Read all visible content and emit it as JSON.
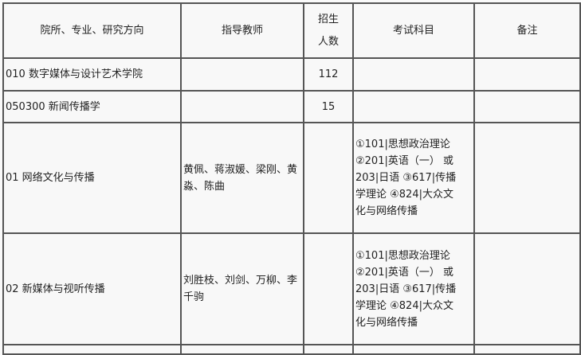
{
  "headers": [
    "院所、专业、研究方向",
    "指导教师",
    "招生人数",
    "考试科目",
    "备注"
  ],
  "header_enroll_lines": [
    "招生",
    "人数"
  ],
  "rows": [
    {
      "name": "010 数字媒体与设计艺术学院",
      "teachers": "",
      "count": "112",
      "exam": [],
      "note": ""
    },
    {
      "name": "050300 新闻传播学",
      "teachers": "",
      "count": "15",
      "exam": [],
      "note": ""
    },
    {
      "name": "01 网络文化与传播",
      "teachers": "黄佩、蒋淑媛、梁刚、黄淼、陈曲",
      "count": "",
      "exam": [
        "①101|思想政治理论",
        "②201|英语（一） 或",
        "203|日语 ③617|传播",
        "学理论 ④824|大众文",
        "化与网络传播"
      ],
      "note": ""
    },
    {
      "name": "02 新媒体与视听传播",
      "teachers": "刘胜枝、刘剑、万柳、李千驹",
      "count": "",
      "exam": [
        "①101|思想政治理论",
        "②201|英语（一） 或",
        "203|日语 ③617|传播",
        "学理论 ④824|大众文",
        "化与网络传播"
      ],
      "note": ""
    }
  ]
}
